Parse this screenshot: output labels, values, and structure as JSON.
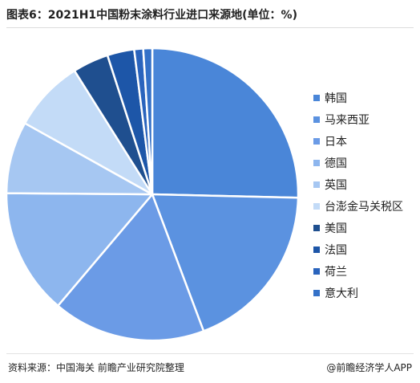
{
  "title": "图表6：2021H1中国粉末涂料行业进口来源地(单位：%)",
  "chart_data": {
    "type": "pie",
    "title": "图表6：2021H1中国粉末涂料行业进口来源地(单位：%)",
    "unit": "%",
    "legend_position": "right",
    "slices": [
      {
        "label": "韩国",
        "value": 25.5,
        "color": "#4a86d8"
      },
      {
        "label": "马来西亚",
        "value": 19.0,
        "color": "#5b92e0"
      },
      {
        "label": "日本",
        "value": 17.0,
        "color": "#6b9be6"
      },
      {
        "label": "德国",
        "value": 14.0,
        "color": "#8db6ee"
      },
      {
        "label": "英国",
        "value": 8.0,
        "color": "#a6c7f2"
      },
      {
        "label": "台澎金马关税区",
        "value": 8.0,
        "color": "#c3dbf7"
      },
      {
        "label": "美国",
        "value": 4.0,
        "color": "#1f4f8f"
      },
      {
        "label": "法国",
        "value": 3.0,
        "color": "#1d56a8"
      },
      {
        "label": "荷兰",
        "value": 1.0,
        "color": "#2a64bd"
      },
      {
        "label": "意大利",
        "value": 1.0,
        "color": "#3471c8"
      }
    ]
  },
  "footer": {
    "source": "资料来源：中国海关 前瞻产业研究院整理",
    "brand": "@前瞻经济学人APP"
  }
}
